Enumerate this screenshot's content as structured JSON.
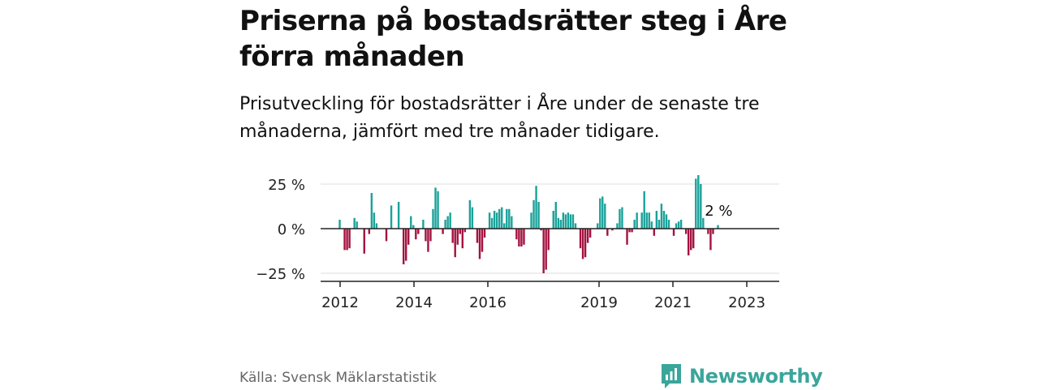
{
  "title": "Priserna på bostadsrätter steg i Åre förra månaden",
  "subtitle": "Prisutveckling för bostadsrätter i Åre under de senaste tre månaderna, jämfört med tre månader tidigare.",
  "source": "Källa: Svensk Mäklarstatistik",
  "brand": "Newsworthy",
  "colors": {
    "positive": "#1aa29a",
    "negative": "#a3123f",
    "grid": "#dddddd",
    "axis": "#222222",
    "brand": "#3aa59b"
  },
  "chart_data": {
    "type": "bar",
    "x_ticks": [
      "2012",
      "2014",
      "2016",
      "2019",
      "2021",
      "2023"
    ],
    "y_ticks": [
      "25 %",
      "0 %",
      "−25 %"
    ],
    "ylim": [
      -30,
      30
    ],
    "annotation": "2 %",
    "values": [
      5,
      0,
      -12,
      -12,
      -11,
      0,
      6,
      4,
      0,
      0,
      -14,
      0,
      -3,
      20,
      9,
      3,
      0,
      0,
      0,
      -7,
      0,
      13,
      0,
      0,
      15,
      0,
      -20,
      -18,
      -9,
      7,
      2,
      -6,
      -3,
      0,
      5,
      -7,
      -13,
      -7,
      11,
      23,
      21,
      0,
      -3,
      5,
      7,
      9,
      -8,
      -16,
      -9,
      -3,
      -11,
      -2,
      0,
      16,
      12,
      0,
      -8,
      -17,
      -13,
      -5,
      0,
      9,
      6,
      10,
      9,
      11,
      12,
      3,
      11,
      11,
      7,
      0,
      -6,
      -10,
      -10,
      -9,
      0,
      0,
      9,
      16,
      24,
      15,
      -1,
      -25,
      -23,
      -12,
      0,
      10,
      15,
      6,
      5,
      9,
      8,
      9,
      8,
      8,
      3,
      0,
      -11,
      -17,
      -16,
      -8,
      -5,
      0,
      0,
      3,
      17,
      18,
      14,
      -4,
      0,
      -1,
      0,
      3,
      11,
      12,
      0,
      -9,
      -2,
      -2,
      5,
      9,
      0,
      9,
      21,
      9,
      9,
      4,
      -4,
      10,
      5,
      14,
      10,
      8,
      5,
      0,
      -4,
      3,
      4,
      5,
      0,
      -3,
      -15,
      -12,
      -11,
      28,
      30,
      25,
      6,
      0,
      -3,
      -12,
      -3,
      0,
      2
    ]
  }
}
